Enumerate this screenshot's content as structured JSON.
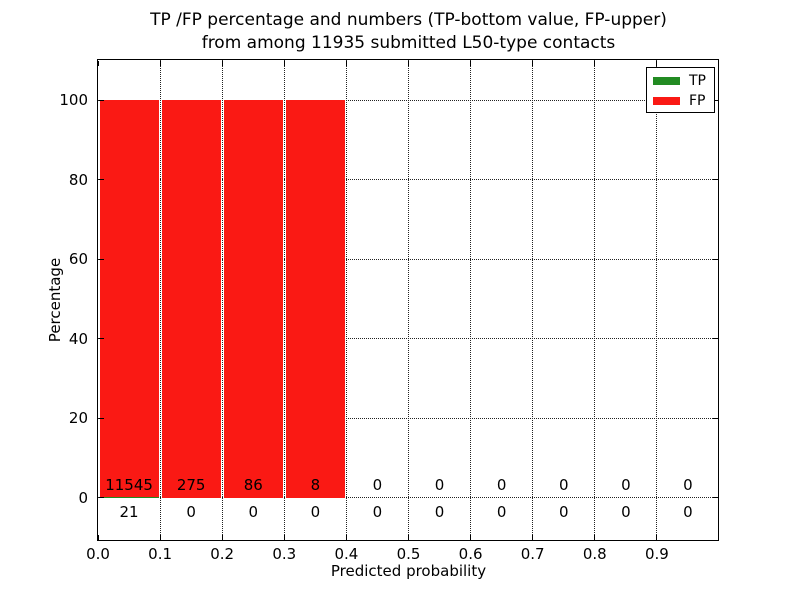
{
  "title": {
    "line1": "TP /FP percentage and numbers (TP-bottom value, FP-upper)",
    "line2": "from among 11935 submitted L50-type contacts"
  },
  "chart_data": {
    "type": "bar",
    "stacked": true,
    "title": "TP /FP percentage and numbers (TP-bottom value, FP-upper)\nfrom among 11935 submitted L50-type contacts",
    "xlabel": "Predicted probability",
    "ylabel": "Percentage",
    "xlim": [
      0.0,
      1.0
    ],
    "ylim": [
      -11,
      110
    ],
    "xtick_values": [
      0.0,
      0.1,
      0.2,
      0.3,
      0.4,
      0.5,
      0.6,
      0.7,
      0.8,
      0.9
    ],
    "xtick_labels": [
      "0.0",
      "0.1",
      "0.2",
      "0.3",
      "0.4",
      "0.5",
      "0.6",
      "0.7",
      "0.8",
      "0.9"
    ],
    "ytick_values": [
      0,
      20,
      40,
      60,
      80,
      100
    ],
    "ytick_labels": [
      "0",
      "20",
      "40",
      "60",
      "80",
      "100"
    ],
    "grid": "dotted",
    "bin_width": 0.1,
    "bin_starts": [
      0.0,
      0.1,
      0.2,
      0.3,
      0.4,
      0.5,
      0.6,
      0.7,
      0.8,
      0.9
    ],
    "series": [
      {
        "name": "TP",
        "color": "#228b22",
        "counts": [
          21,
          0,
          0,
          0,
          0,
          0,
          0,
          0,
          0,
          0
        ],
        "percents": [
          0.18,
          0,
          0,
          0,
          0,
          0,
          0,
          0,
          0,
          0
        ]
      },
      {
        "name": "FP",
        "color": "#fa1914",
        "counts": [
          11545,
          275,
          86,
          8,
          0,
          0,
          0,
          0,
          0,
          0
        ],
        "percents": [
          99.82,
          100,
          100,
          100,
          0,
          0,
          0,
          0,
          0,
          0
        ]
      }
    ],
    "legend": {
      "position": "upper right",
      "entries": [
        "TP",
        "FP"
      ]
    }
  },
  "colors": {
    "background": "#ffffff",
    "frame": "#000000",
    "grid": "#222222",
    "text": "#000000",
    "tp": "#228b22",
    "fp": "#fa1914"
  }
}
